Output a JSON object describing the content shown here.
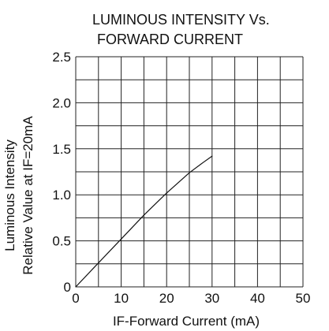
{
  "chart_data": {
    "type": "line",
    "title_lines": [
      "LUMINOUS INTENSITY Vs.",
      "FORWARD CURRENT"
    ],
    "xlabel": "IF-Forward Current (mA)",
    "ylabel_lines": [
      "Luminous Intensity",
      "Relative Value at IF=20mA"
    ],
    "xlim": [
      0,
      50
    ],
    "ylim": [
      0,
      2.5
    ],
    "x_ticks": [
      0,
      10,
      20,
      30,
      40,
      50
    ],
    "x_tick_labels": [
      "0",
      "10",
      "20",
      "30",
      "40",
      "50"
    ],
    "y_ticks": [
      0,
      0.5,
      1.0,
      1.5,
      2.0,
      2.5
    ],
    "y_tick_labels": [
      "0",
      "0.5",
      "1.0",
      "1.5",
      "2.0",
      "2.5"
    ],
    "grid": true,
    "grid_minor_step_x": 5,
    "grid_minor_step_y": 0.25,
    "series": [
      {
        "x": [
          0,
          5,
          10,
          15,
          20,
          25,
          28,
          30
        ],
        "values": [
          0,
          0.26,
          0.52,
          0.78,
          1.02,
          1.24,
          1.35,
          1.42
        ]
      }
    ],
    "colors": {
      "line": "#111111",
      "grid": "#222222",
      "text": "#111111"
    }
  }
}
